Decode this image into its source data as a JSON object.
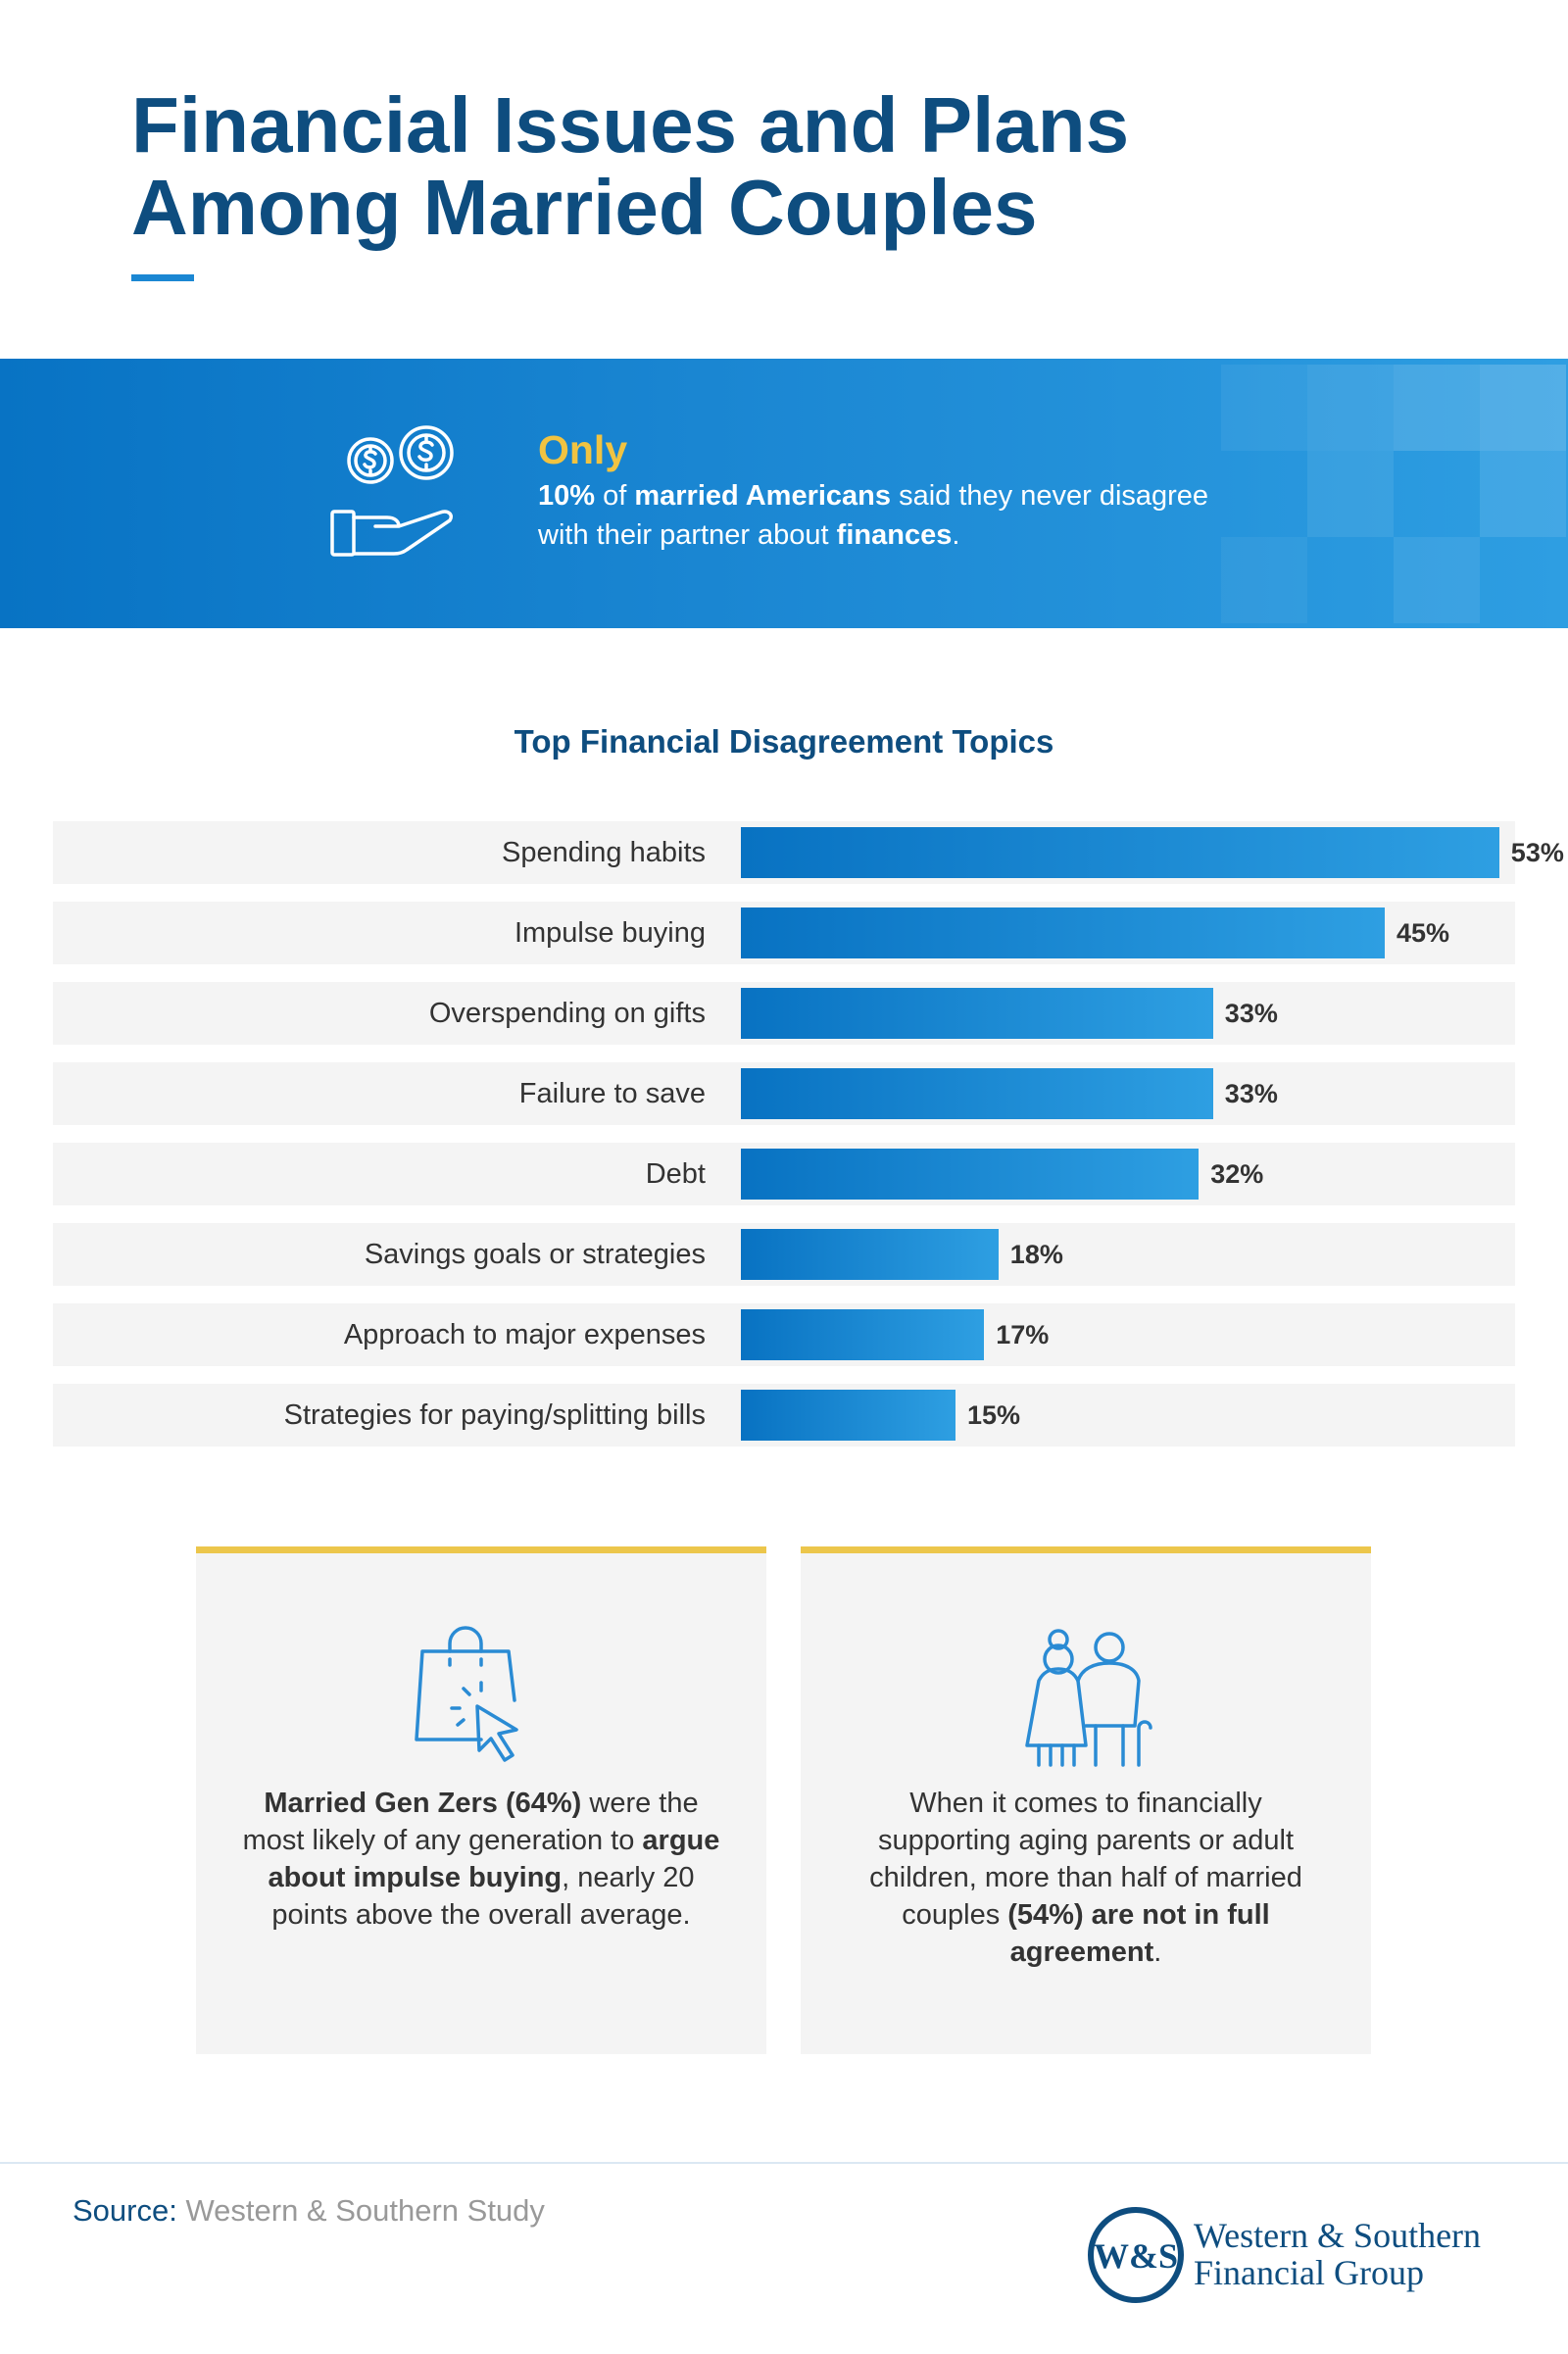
{
  "header": {
    "title_line1": "Financial Issues and Plans",
    "title_line2": "Among Married Couples"
  },
  "banner": {
    "lead": "Only",
    "stat": "10%",
    "text1": " of ",
    "emph1": "married Americans",
    "text2": " said they never disagree with their partner about ",
    "emph2": "finances",
    "text3": "."
  },
  "chart_data": {
    "type": "bar",
    "orientation": "horizontal",
    "title": "Top Financial Disagreement Topics",
    "categories": [
      "Spending habits",
      "Impulse buying",
      "Overspending on gifts",
      "Failure to save",
      "Debt",
      "Savings goals or strategies",
      "Approach to major expenses",
      "Strategies for paying/splitting bills"
    ],
    "values": [
      53,
      45,
      33,
      33,
      32,
      18,
      17,
      15
    ],
    "value_labels": [
      "53%",
      "45%",
      "33%",
      "33%",
      "32%",
      "18%",
      "17%",
      "15%"
    ],
    "unit": "%",
    "xlim": [
      0,
      60
    ],
    "grid": false,
    "legend": "none"
  },
  "cards": {
    "left": {
      "b1": "Married Gen Zers (64%)",
      "t1": " were the most likely of any generation to ",
      "b2": "argue about impulse buying",
      "t2": ", nearly 20 points above the overall average."
    },
    "right": {
      "t1": "When it comes to financially supporting aging parents or adult children, more than half of married couples ",
      "b1": "(54%) are not in full agreement",
      "t2": "."
    }
  },
  "footer": {
    "source_label": "Source:",
    "source_text": " Western & Southern Study",
    "logo_monogram": "W&S",
    "logo_line1": "Western & Southern",
    "logo_line2": "Financial Group"
  },
  "colors": {
    "title": "#0e4d7f",
    "accent_blue": "#1b87d3",
    "accent_yellow": "#f1c341",
    "card_border": "#ecc64b",
    "bar_start": "#0872c2",
    "bar_end": "#2e9fe2"
  },
  "icons": {
    "banner": "coins-hand-icon",
    "left_card": "shopping-bag-click-icon",
    "right_card": "elderly-couple-icon"
  }
}
